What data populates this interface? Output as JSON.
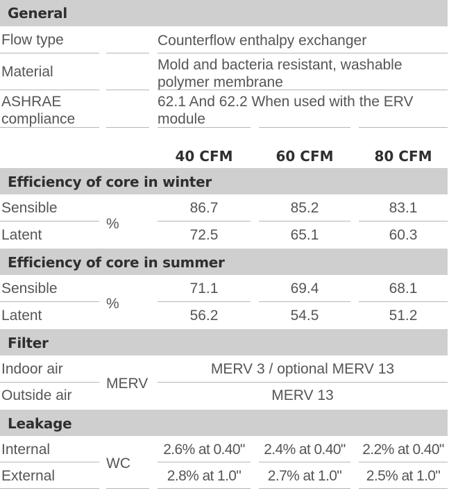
{
  "general": {
    "title": "General",
    "rows": [
      {
        "label": "Flow type",
        "value": "Counterflow enthalpy exchanger"
      },
      {
        "label": "Material",
        "value": "Mold and bacteria resistant, washable polymer membrane"
      },
      {
        "label": "ASHRAE compliance",
        "value": "62.1 And 62.2 When used with the ERV module"
      }
    ]
  },
  "columns": [
    "40 CFM",
    "60 CFM",
    "80 CFM"
  ],
  "winter": {
    "title": "Efficiency  of core in winter",
    "unit": "%",
    "rows": [
      {
        "label": "Sensible",
        "values": [
          "86.7",
          "85.2",
          "83.1"
        ]
      },
      {
        "label": "Latent",
        "values": [
          "72.5",
          "65.1",
          "60.3"
        ]
      }
    ]
  },
  "summer": {
    "title": "Efficiency  of core in summer",
    "unit": "%",
    "rows": [
      {
        "label": "Sensible",
        "values": [
          "71.1",
          "69.4",
          "68.1"
        ]
      },
      {
        "label": "Latent",
        "values": [
          "56.2",
          "54.5",
          "51.2"
        ]
      }
    ]
  },
  "filter": {
    "title": "Filter",
    "unit": "MERV",
    "rows": [
      {
        "label": "Indoor air",
        "value": "MERV 3 / optional MERV 13"
      },
      {
        "label": "Outside air",
        "value": "MERV 13"
      }
    ]
  },
  "leakage": {
    "title": "Leakage",
    "unit": "WC",
    "rows": [
      {
        "label": "Internal",
        "values": [
          "2.6% at 0.40\"",
          "2.4% at 0.40\"",
          "2.2% at 0.40\""
        ]
      },
      {
        "label": "External",
        "values": [
          "2.8% at 1.0\"",
          "2.7% at 1.0\"",
          "2.5% at 1.0\""
        ]
      }
    ]
  }
}
